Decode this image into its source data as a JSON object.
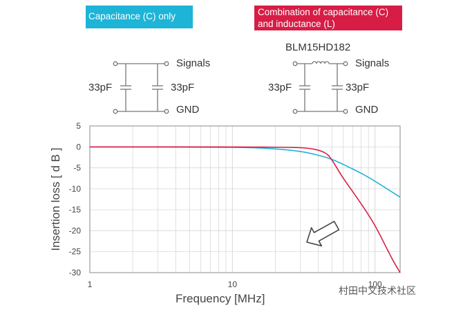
{
  "labels": {
    "cap_only": "Capacitance (C) only",
    "cap_ind_line1": "Combination of capacitance (C)",
    "cap_ind_line2": "and inductance (L)",
    "part_number": "BLM15HD182",
    "signals": "Signals",
    "gnd": "GND",
    "cap_value": "33pF"
  },
  "colors": {
    "cap_only": "#1eb4d8",
    "cap_ind": "#d71d45",
    "grid": "#d8d8d8",
    "axes": "#888888",
    "circuit": "#777777"
  },
  "watermark": "村田中文技术社区",
  "chart_data": {
    "type": "line",
    "xlabel": "Frequency [MHz]",
    "ylabel": "Insertion loss [ d B ]",
    "xscale": "log",
    "xlim": [
      1,
      150
    ],
    "ylim": [
      -30,
      5
    ],
    "x_ticks": [
      "1",
      "10",
      "100"
    ],
    "y_ticks": [
      "5",
      "0",
      "-5",
      "-10",
      "-15",
      "-20",
      "-25",
      "-30"
    ],
    "grid": true,
    "annotation": "arrow pointing down-left toward the steeper LC curve",
    "series": [
      {
        "color": "#1eb4d8",
        "x": [
          1,
          10,
          20,
          30,
          40,
          50,
          60,
          80,
          100,
          150
        ],
        "y": [
          0,
          -0.1,
          -0.5,
          -1.1,
          -2.0,
          -3.0,
          -4.2,
          -6.3,
          -8.2,
          -12
        ]
      },
      {
        "color": "#d71d45",
        "x": [
          1,
          10,
          20,
          30,
          38,
          45,
          50,
          60,
          80,
          100,
          130,
          150
        ],
        "y": [
          0,
          -0.02,
          -0.08,
          -0.2,
          -0.6,
          -1.5,
          -3.2,
          -7.5,
          -13.6,
          -18.8,
          -26.3,
          -30
        ]
      }
    ]
  }
}
